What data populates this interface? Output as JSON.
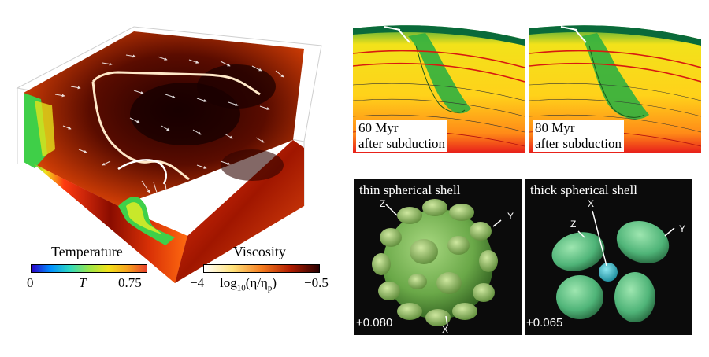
{
  "colors": {
    "background": "#ffffff",
    "panel_dark": "#0b0b0b",
    "shell_green": "#7fbf57",
    "temperature_scale": [
      "#2a00c8",
      "#0090ff",
      "#2fd9c0",
      "#9ae64a",
      "#f2e21a",
      "#f6a21e",
      "#e8412a"
    ],
    "viscosity_scale": [
      "#ffffff",
      "#ffe27a",
      "#f47c1f",
      "#b01c00",
      "#2a0000"
    ]
  },
  "left_figure": {
    "name": "3D box convection with temperature surface and viscosity top",
    "temperature_bar": {
      "title": "Temperature",
      "min": "0",
      "var": "T",
      "max": "0.75"
    },
    "viscosity_bar": {
      "title": "Viscosity",
      "min": "−4",
      "expr": "log",
      "expr_sub": "10",
      "expr_rest": "(η/η",
      "expr_sub2": "p",
      "expr_close": ")",
      "max": "−0.5"
    }
  },
  "subduction_panels": [
    {
      "line1": "60 Myr",
      "line2": "after subduction"
    },
    {
      "line1": "80 Myr",
      "line2": "after subduction"
    }
  ],
  "shell_panels": [
    {
      "title": "thin spherical shell",
      "iso": "+0.080",
      "axes": {
        "x": "X",
        "y": "Y",
        "z": "Z"
      }
    },
    {
      "title": "thick spherical shell",
      "iso": "+0.065",
      "axes": {
        "x": "X",
        "y": "Y",
        "z": "Z"
      }
    }
  ]
}
